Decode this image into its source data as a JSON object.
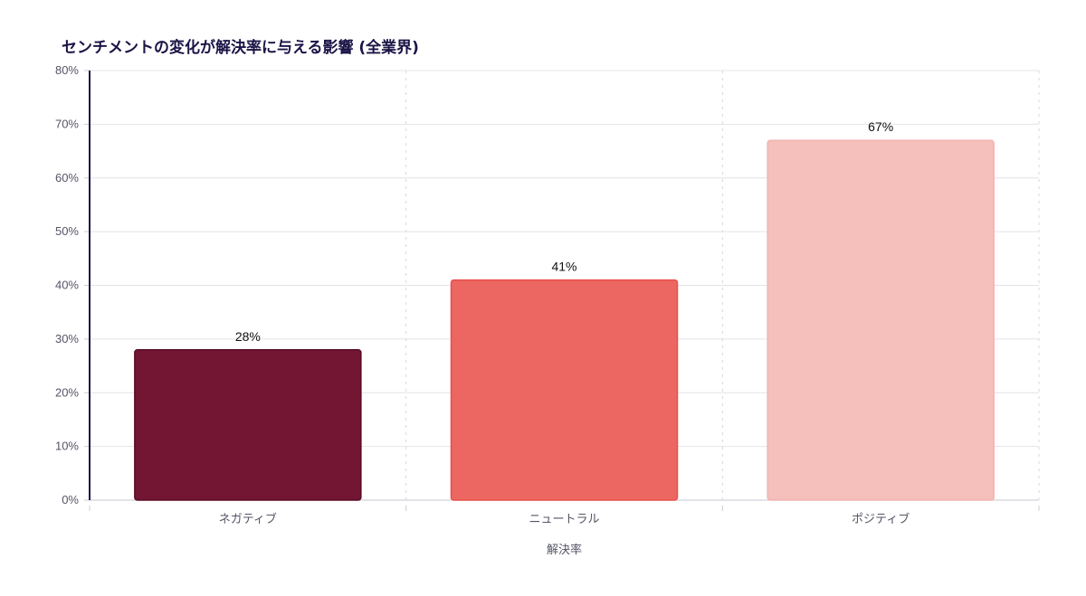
{
  "chart_data": {
    "type": "bar",
    "title": "センチメントの変化が解決率に与える影響 (全業界)",
    "xlabel": "解決率",
    "ylabel": "",
    "categories": [
      "ネガティブ",
      "ニュートラル",
      "ポジティブ"
    ],
    "values": [
      28,
      41,
      67
    ],
    "data_labels": [
      "28%",
      "41%",
      "67%"
    ],
    "ylim": [
      0,
      80
    ],
    "yticks": [
      "0%",
      "10%",
      "20%",
      "30%",
      "40%",
      "50%",
      "60%",
      "70%",
      "80%"
    ],
    "grid": true,
    "colors": [
      "#721633",
      "#EC6762",
      "#F5BFBC"
    ],
    "border_colors": [
      "#5a0d25",
      "#e8504c",
      "#f2b3b0"
    ]
  }
}
